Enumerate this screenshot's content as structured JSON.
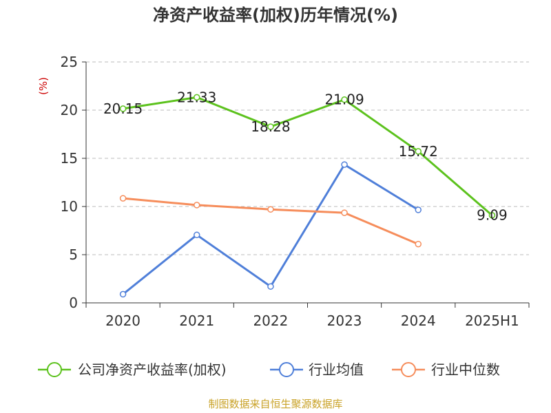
{
  "chart_data": {
    "type": "line",
    "title": "净资产收益率(加权)历年情况(%)",
    "ylabel": "(%)",
    "xlabel": "",
    "categories": [
      "2020",
      "2021",
      "2022",
      "2023",
      "2024",
      "2025H1"
    ],
    "ylim": [
      0,
      25
    ],
    "yticks": [
      0,
      5,
      10,
      15,
      20,
      25
    ],
    "grid": true,
    "legend_position": "bottom",
    "series": [
      {
        "name": "公司净资产收益率(加权)",
        "color": "#5cc21d",
        "values": [
          20.15,
          21.33,
          18.28,
          21.09,
          15.72,
          9.09
        ],
        "labels": [
          "20.15",
          "21.33",
          "18.28",
          "21.09",
          "15.72",
          "9.09"
        ]
      },
      {
        "name": "行业均值",
        "color": "#4f7fd9",
        "values": [
          0.9,
          7.05,
          1.7,
          14.35,
          9.65,
          null
        ]
      },
      {
        "name": "行业中位数",
        "color": "#f68d5b",
        "values": [
          10.85,
          10.15,
          9.7,
          9.35,
          6.1,
          null
        ]
      }
    ]
  },
  "footer": {
    "source": "制图数据来自恒生聚源数据库"
  }
}
